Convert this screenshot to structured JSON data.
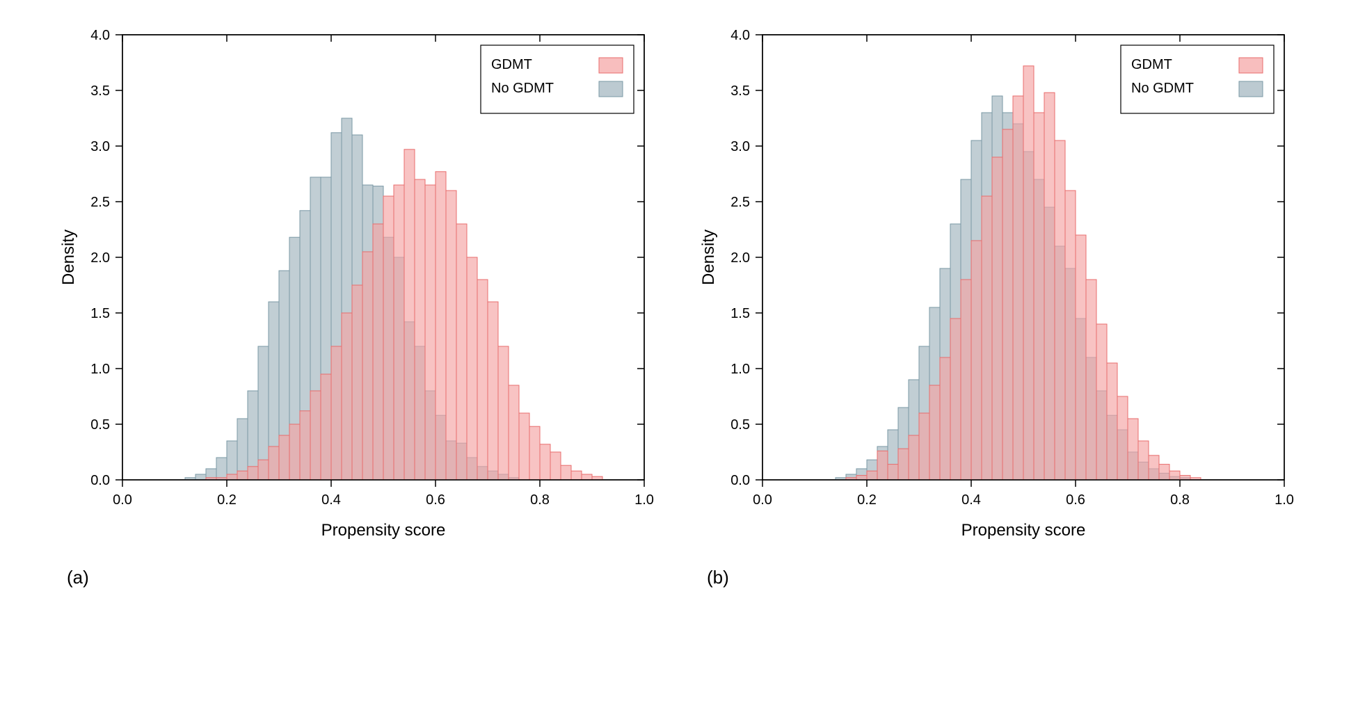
{
  "layout": {
    "panels": 2,
    "arrangement": "horizontal",
    "background_color": "#ffffff"
  },
  "colors": {
    "gdmt_fill": "#f5a3a3",
    "gdmt_stroke": "#e86c6c",
    "nogdmt_fill": "#9fb4bd",
    "nogdmt_stroke": "#7a98a5",
    "axis_color": "#000000",
    "tick_color": "#000000",
    "grid_color": "#cccccc",
    "text_color": "#000000",
    "legend_border": "#000000"
  },
  "typography": {
    "axis_label_fontsize": 24,
    "tick_fontsize": 20,
    "legend_fontsize": 20,
    "panel_label_fontsize": 26
  },
  "panel_a": {
    "label": "(a)",
    "type": "histogram",
    "xlabel": "Propensity score",
    "ylabel": "Density",
    "xlim": [
      0.0,
      1.0
    ],
    "ylim": [
      0.0,
      4.0
    ],
    "xtick_step": 0.2,
    "ytick_step": 0.5,
    "xticks_major": [
      0.0,
      0.2,
      0.4,
      0.6,
      0.8,
      1.0
    ],
    "yticks_major": [
      0.0,
      0.5,
      1.0,
      1.5,
      2.0,
      2.5,
      3.0,
      3.5,
      4.0
    ],
    "bin_width": 0.02,
    "legend": {
      "position": "top-right",
      "items": [
        {
          "label": "GDMT",
          "fill": "#f5a3a3",
          "stroke": "#e86c6c"
        },
        {
          "label": "No GDMT",
          "fill": "#9fb4bd",
          "stroke": "#7a98a5"
        }
      ]
    },
    "series": {
      "gdmt": {
        "bin_edges_start": 0.14,
        "values": [
          0.0,
          0.02,
          0.02,
          0.05,
          0.08,
          0.12,
          0.18,
          0.3,
          0.4,
          0.5,
          0.62,
          0.8,
          0.95,
          1.2,
          1.5,
          1.75,
          2.05,
          2.3,
          2.55,
          2.65,
          2.97,
          2.7,
          2.65,
          2.77,
          2.6,
          2.3,
          2.0,
          1.8,
          1.6,
          1.2,
          0.85,
          0.6,
          0.48,
          0.32,
          0.25,
          0.13,
          0.08,
          0.05,
          0.03,
          0.0
        ],
        "color": "#f5a3a3",
        "stroke": "#e86c6c",
        "opacity": 0.65
      },
      "nogdmt": {
        "bin_edges_start": 0.12,
        "values": [
          0.02,
          0.05,
          0.1,
          0.2,
          0.35,
          0.55,
          0.8,
          1.2,
          1.6,
          1.88,
          2.18,
          2.42,
          2.72,
          2.72,
          3.12,
          3.25,
          3.1,
          2.65,
          2.64,
          2.18,
          2.0,
          1.42,
          1.2,
          0.8,
          0.58,
          0.35,
          0.33,
          0.2,
          0.12,
          0.08,
          0.05,
          0.02,
          0.0,
          0.0,
          0.0,
          0.0,
          0.0,
          0.0,
          0.0,
          0.0
        ],
        "color": "#9fb4bd",
        "stroke": "#7a98a5",
        "opacity": 0.65
      }
    }
  },
  "panel_b": {
    "label": "(b)",
    "type": "histogram",
    "xlabel": "Propensity score",
    "ylabel": "Density",
    "xlim": [
      0.0,
      1.0
    ],
    "ylim": [
      0.0,
      4.0
    ],
    "xtick_step": 0.2,
    "ytick_step": 0.5,
    "xticks_major": [
      0.0,
      0.2,
      0.4,
      0.6,
      0.8,
      1.0
    ],
    "yticks_major": [
      0.0,
      0.5,
      1.0,
      1.5,
      2.0,
      2.5,
      3.0,
      3.5,
      4.0
    ],
    "bin_width": 0.02,
    "legend": {
      "position": "top-right",
      "items": [
        {
          "label": "GDMT",
          "fill": "#f5a3a3",
          "stroke": "#e86c6c"
        },
        {
          "label": "No GDMT",
          "fill": "#9fb4bd",
          "stroke": "#7a98a5"
        }
      ]
    },
    "series": {
      "gdmt": {
        "bin_edges_start": 0.14,
        "values": [
          0.0,
          0.02,
          0.04,
          0.08,
          0.26,
          0.14,
          0.28,
          0.4,
          0.6,
          0.85,
          1.1,
          1.45,
          1.8,
          2.15,
          2.55,
          2.9,
          3.15,
          3.45,
          3.72,
          3.3,
          3.48,
          3.05,
          2.6,
          2.2,
          1.8,
          1.4,
          1.05,
          0.75,
          0.55,
          0.35,
          0.22,
          0.14,
          0.08,
          0.04,
          0.02,
          0.0,
          0.0,
          0.0,
          0.0,
          0.0
        ],
        "color": "#f5a3a3",
        "stroke": "#e86c6c",
        "opacity": 0.65
      },
      "nogdmt": {
        "bin_edges_start": 0.12,
        "values": [
          0.0,
          0.02,
          0.05,
          0.1,
          0.18,
          0.3,
          0.45,
          0.65,
          0.9,
          1.2,
          1.55,
          1.9,
          2.3,
          2.7,
          3.05,
          3.3,
          3.45,
          3.3,
          3.2,
          2.95,
          2.7,
          2.45,
          2.1,
          1.9,
          1.45,
          1.1,
          0.8,
          0.58,
          0.45,
          0.25,
          0.16,
          0.1,
          0.06,
          0.03,
          0.02,
          0.0,
          0.0,
          0.0,
          0.0,
          0.0
        ],
        "color": "#9fb4bd",
        "stroke": "#7a98a5",
        "opacity": 0.65
      }
    }
  }
}
